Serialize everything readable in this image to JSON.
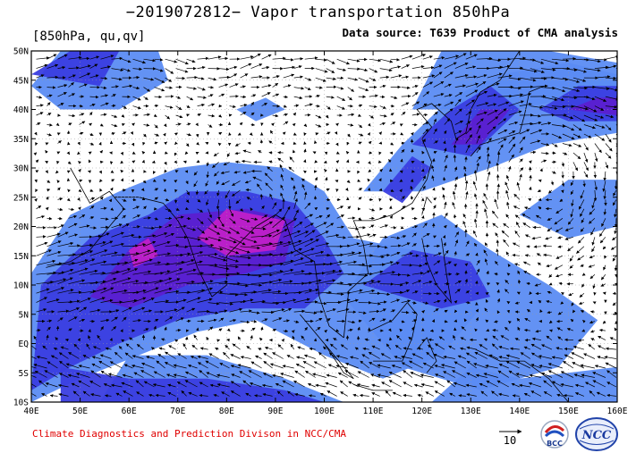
{
  "title": "−2019072812− Vapor transportation 850hPa",
  "subtitle_left": "[850hPa, qu,qv]",
  "subtitle_right": "Data source: T639 Product of CMA analysis",
  "credit": "Climate Diagnostics and Prediction Divison in NCC/CMA",
  "reference_vector": {
    "value": 10,
    "label": "10"
  },
  "logos": [
    {
      "name": "bcc-logo",
      "label": "BCC"
    },
    {
      "name": "ncc-logo",
      "label": "NCC"
    }
  ],
  "map": {
    "lon_range": [
      40,
      160
    ],
    "lat_range": [
      -10,
      50
    ],
    "lon_ticks": [
      "40E",
      "50E",
      "60E",
      "70E",
      "80E",
      "90E",
      "100E",
      "110E",
      "120E",
      "130E",
      "140E",
      "150E",
      "160E"
    ],
    "lat_ticks": [
      "10S",
      "5S",
      "EQ",
      "5N",
      "10N",
      "15N",
      "20N",
      "25N",
      "30N",
      "35N",
      "40N",
      "45N",
      "50N"
    ],
    "colors": {
      "flux_light": "#5b8cf3",
      "flux_medium": "#3a3ee0",
      "flux_strong": "#5b1fd0",
      "flux_peak": "#c020c8",
      "background": "#ffffff",
      "vectors": "#000000"
    }
  }
}
